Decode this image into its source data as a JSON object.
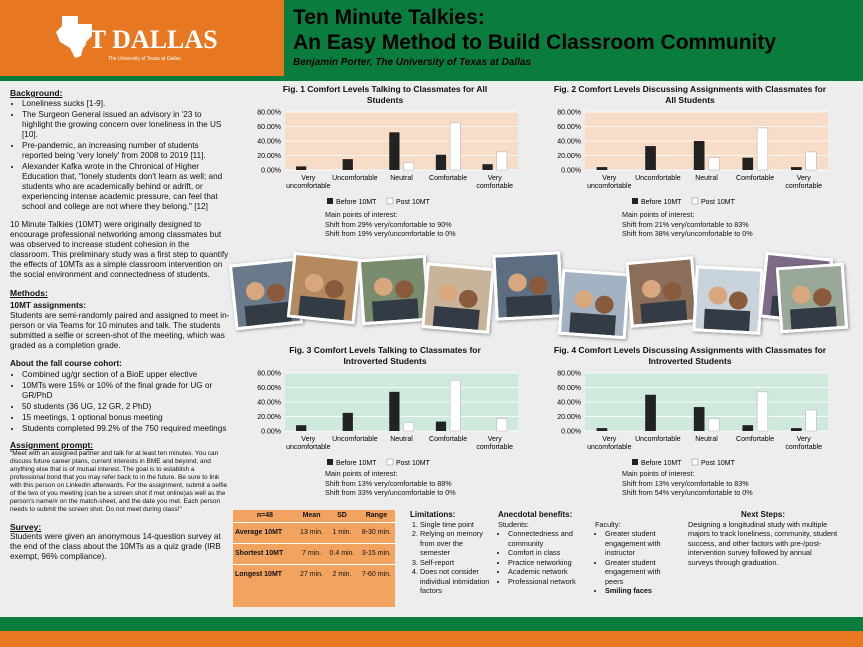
{
  "header": {
    "logo_text": "UT DALLAS",
    "logo_sub": "The University of Texas at Dallas",
    "title_line1": "Ten Minute Talkies:",
    "title_line2": "An Easy Method to Build Classroom Community",
    "author": "Benjamin Porter, The University of Texas at Dallas"
  },
  "left": {
    "background_heading": "Background:",
    "background_items": [
      "Loneliness sucks [1-9].",
      "The Surgeon General issued an advisory in '23 to highlight the growing concern over loneliness in the US [10].",
      "Pre-pandemic, an increasing number of students reported being 'very lonely' from 2008 to 2019 [11].",
      "Alexander Kafka wrote in the Chronical of Higher Education that, \"lonely students don't learn as well; and students who are academically behind or adrift, or experiencing intense academic pressure, can feel that school and college are not where they belong.\" [12]"
    ],
    "intro_para": "10 Minute Talkies (10MT) were originally designed to encourage professional networking among classmates but was observed to increase student cohesion in the classroom. This preliminary study was a first step to quantify the effects of 10MTs as a simple classroom intervention on the social environment and connectedness of students.",
    "methods_heading": "Methods:",
    "assign_sub": "10MT assignments:",
    "assign_para": "Students are semi-randomly paired and assigned to meet in-person or via Teams for 10 minutes and talk. The students submitted a selfie or screen-shot of the meeting, which was graded as a completion grade.",
    "cohort_sub": "About the fall course cohort:",
    "cohort_items": [
      "Combined ug/gr section of a BioE upper elective",
      "10MTs were 15% or 10% of the final grade for UG or GR/PhD",
      "50 students (36 UG, 12 GR, 2 PhD)",
      "15 meetings, 1 optional bonus meeting",
      "Students completed 99.2% of the 750 required meetings"
    ],
    "prompt_heading": "Assignment prompt:",
    "prompt_text": "\"Meet with an assigned partner and talk for at least ten minutes. You can discuss future career plans, current interests in BME and beyond, and anything else that is of mutual interest. The goal is to establish a professional bond that you may refer back to in the future. Be sure to link with this person on LinkedIn afterwards. For the assignment, submit a selfie of the two of you meeting (can be a screen shot if met online)as well as the person's name/# on the match-sheet, and the date you met. Each person needs to submit the screen shot. Do not meet during class!\"",
    "survey_heading": "Survey:",
    "survey_para": "Students were given an anonymous 14-question survey at the end of the class about the 10MTs as a quiz grade (IRB exempt, 96% compliance)."
  },
  "chart_data": [
    {
      "type": "bar",
      "title": "Fig. 1 Comfort Levels Talking to Classmates for All Students",
      "categories": [
        "Very uncomfortable",
        "Uncomfortable",
        "Neutral",
        "Comfortable",
        "Very comfortable"
      ],
      "series": [
        {
          "name": "Before 10MT",
          "values": [
            5,
            15,
            52,
            21,
            8
          ]
        },
        {
          "name": "Post 10MT",
          "values": [
            0,
            0,
            10,
            65,
            25
          ]
        }
      ],
      "ylim": [
        0,
        80
      ],
      "yticks": [
        "0.00%",
        "20.00%",
        "40.00%",
        "60.00%",
        "80.00%"
      ],
      "notes": [
        "Main points of interest:",
        "Shift from 29% very/comfortable to 90%",
        "Shift from 19% very/uncomfortable to 0%"
      ],
      "bg": "#f7dcc7"
    },
    {
      "type": "bar",
      "title": "Fig. 2 Comfort Levels Discussing Assignments with Classmates for All Students",
      "categories": [
        "Very uncomfortable",
        "Uncomfortable",
        "Neutral",
        "Comfortable",
        "Very comfortable"
      ],
      "series": [
        {
          "name": "Before 10MT",
          "values": [
            4,
            33,
            40,
            17,
            4
          ]
        },
        {
          "name": "Post 10MT",
          "values": [
            0,
            0,
            17,
            58,
            25
          ]
        }
      ],
      "ylim": [
        0,
        80
      ],
      "yticks": [
        "0.00%",
        "20.00%",
        "40.00%",
        "60.00%",
        "80.00%"
      ],
      "notes": [
        "Main points of interest:",
        "Shift from 21% very/comfortable to 83%",
        "Shift from 38% very/uncomfortable to 0%"
      ],
      "bg": "#f7dcc7"
    },
    {
      "type": "bar",
      "title": "Fig. 3 Comfort Levels Talking to Classmates for Introverted Students",
      "categories": [
        "Very uncomfortable",
        "Uncomfortable",
        "Neutral",
        "Comfortable",
        "Very comfortable"
      ],
      "series": [
        {
          "name": "Before 10MT",
          "values": [
            8,
            25,
            54,
            13,
            0
          ]
        },
        {
          "name": "Post 10MT",
          "values": [
            0,
            0,
            12,
            70,
            17
          ]
        }
      ],
      "ylim": [
        0,
        80
      ],
      "yticks": [
        "0.00%",
        "20.00%",
        "40.00%",
        "60.00%",
        "80.00%"
      ],
      "notes": [
        "Main points of interest:",
        "Shift from 13% very/comfortable to 88%",
        "Shift from 33% very/uncomfortable to 0%"
      ],
      "bg": "#cfe9dd"
    },
    {
      "type": "bar",
      "title": "Fig. 4 Comfort Levels Discussing Assignments with Classmates for Introverted Students",
      "categories": [
        "Very uncomfortable",
        "Uncomfortable",
        "Neutral",
        "Comfortable",
        "Very comfortable"
      ],
      "series": [
        {
          "name": "Before 10MT",
          "values": [
            4,
            50,
            33,
            8,
            4
          ]
        },
        {
          "name": "Post 10MT",
          "values": [
            0,
            0,
            17,
            54,
            29
          ]
        }
      ],
      "ylim": [
        0,
        80
      ],
      "yticks": [
        "0.00%",
        "20.00%",
        "40.00%",
        "60.00%",
        "80.00%"
      ],
      "notes": [
        "Main points of interest:",
        "Shift from 13% very/comfortable to 83%",
        "Shift from 54% very/uncomfortable to 0%"
      ],
      "bg": "#cfe9dd"
    }
  ],
  "stats": {
    "headers": [
      "n=48",
      "Mean",
      "SD",
      "Range"
    ],
    "rows": [
      [
        "Average 10MT",
        "13 min.",
        "1 min.",
        "8-30 min."
      ],
      [
        "Shortest 10MT",
        "7 min.",
        "0.4 min.",
        "3-15 min."
      ],
      [
        "Longest 10MT",
        "27 min.",
        "2 min.",
        "7-60 min."
      ]
    ]
  },
  "limitations": {
    "heading": "Limitations:",
    "items": [
      "Single time point",
      "Relying on memory from over the semester",
      "Self-report",
      "Does not consider individual intimidation factors"
    ]
  },
  "anecdotal": {
    "heading": "Anecdotal benefits:",
    "students_label": "Students:",
    "students_items": [
      "Connectedness and community",
      "Comfort in class",
      "Practice networking",
      "Academic network",
      "Professional network"
    ],
    "faculty_label": "Faculty:",
    "faculty_items": [
      "Greater student engagement with instructor",
      "Greater student engagement with peers",
      "Smiling faces"
    ]
  },
  "next": {
    "heading": "Next Steps:",
    "text": "Designing a longitudinal study with multiple majors to track loneliness, community, student success, and other factors with pre-/post-intervention survey followed by annual surveys through graduation."
  },
  "colors": {
    "orange": "#e87722",
    "green": "#0a7d3e"
  }
}
